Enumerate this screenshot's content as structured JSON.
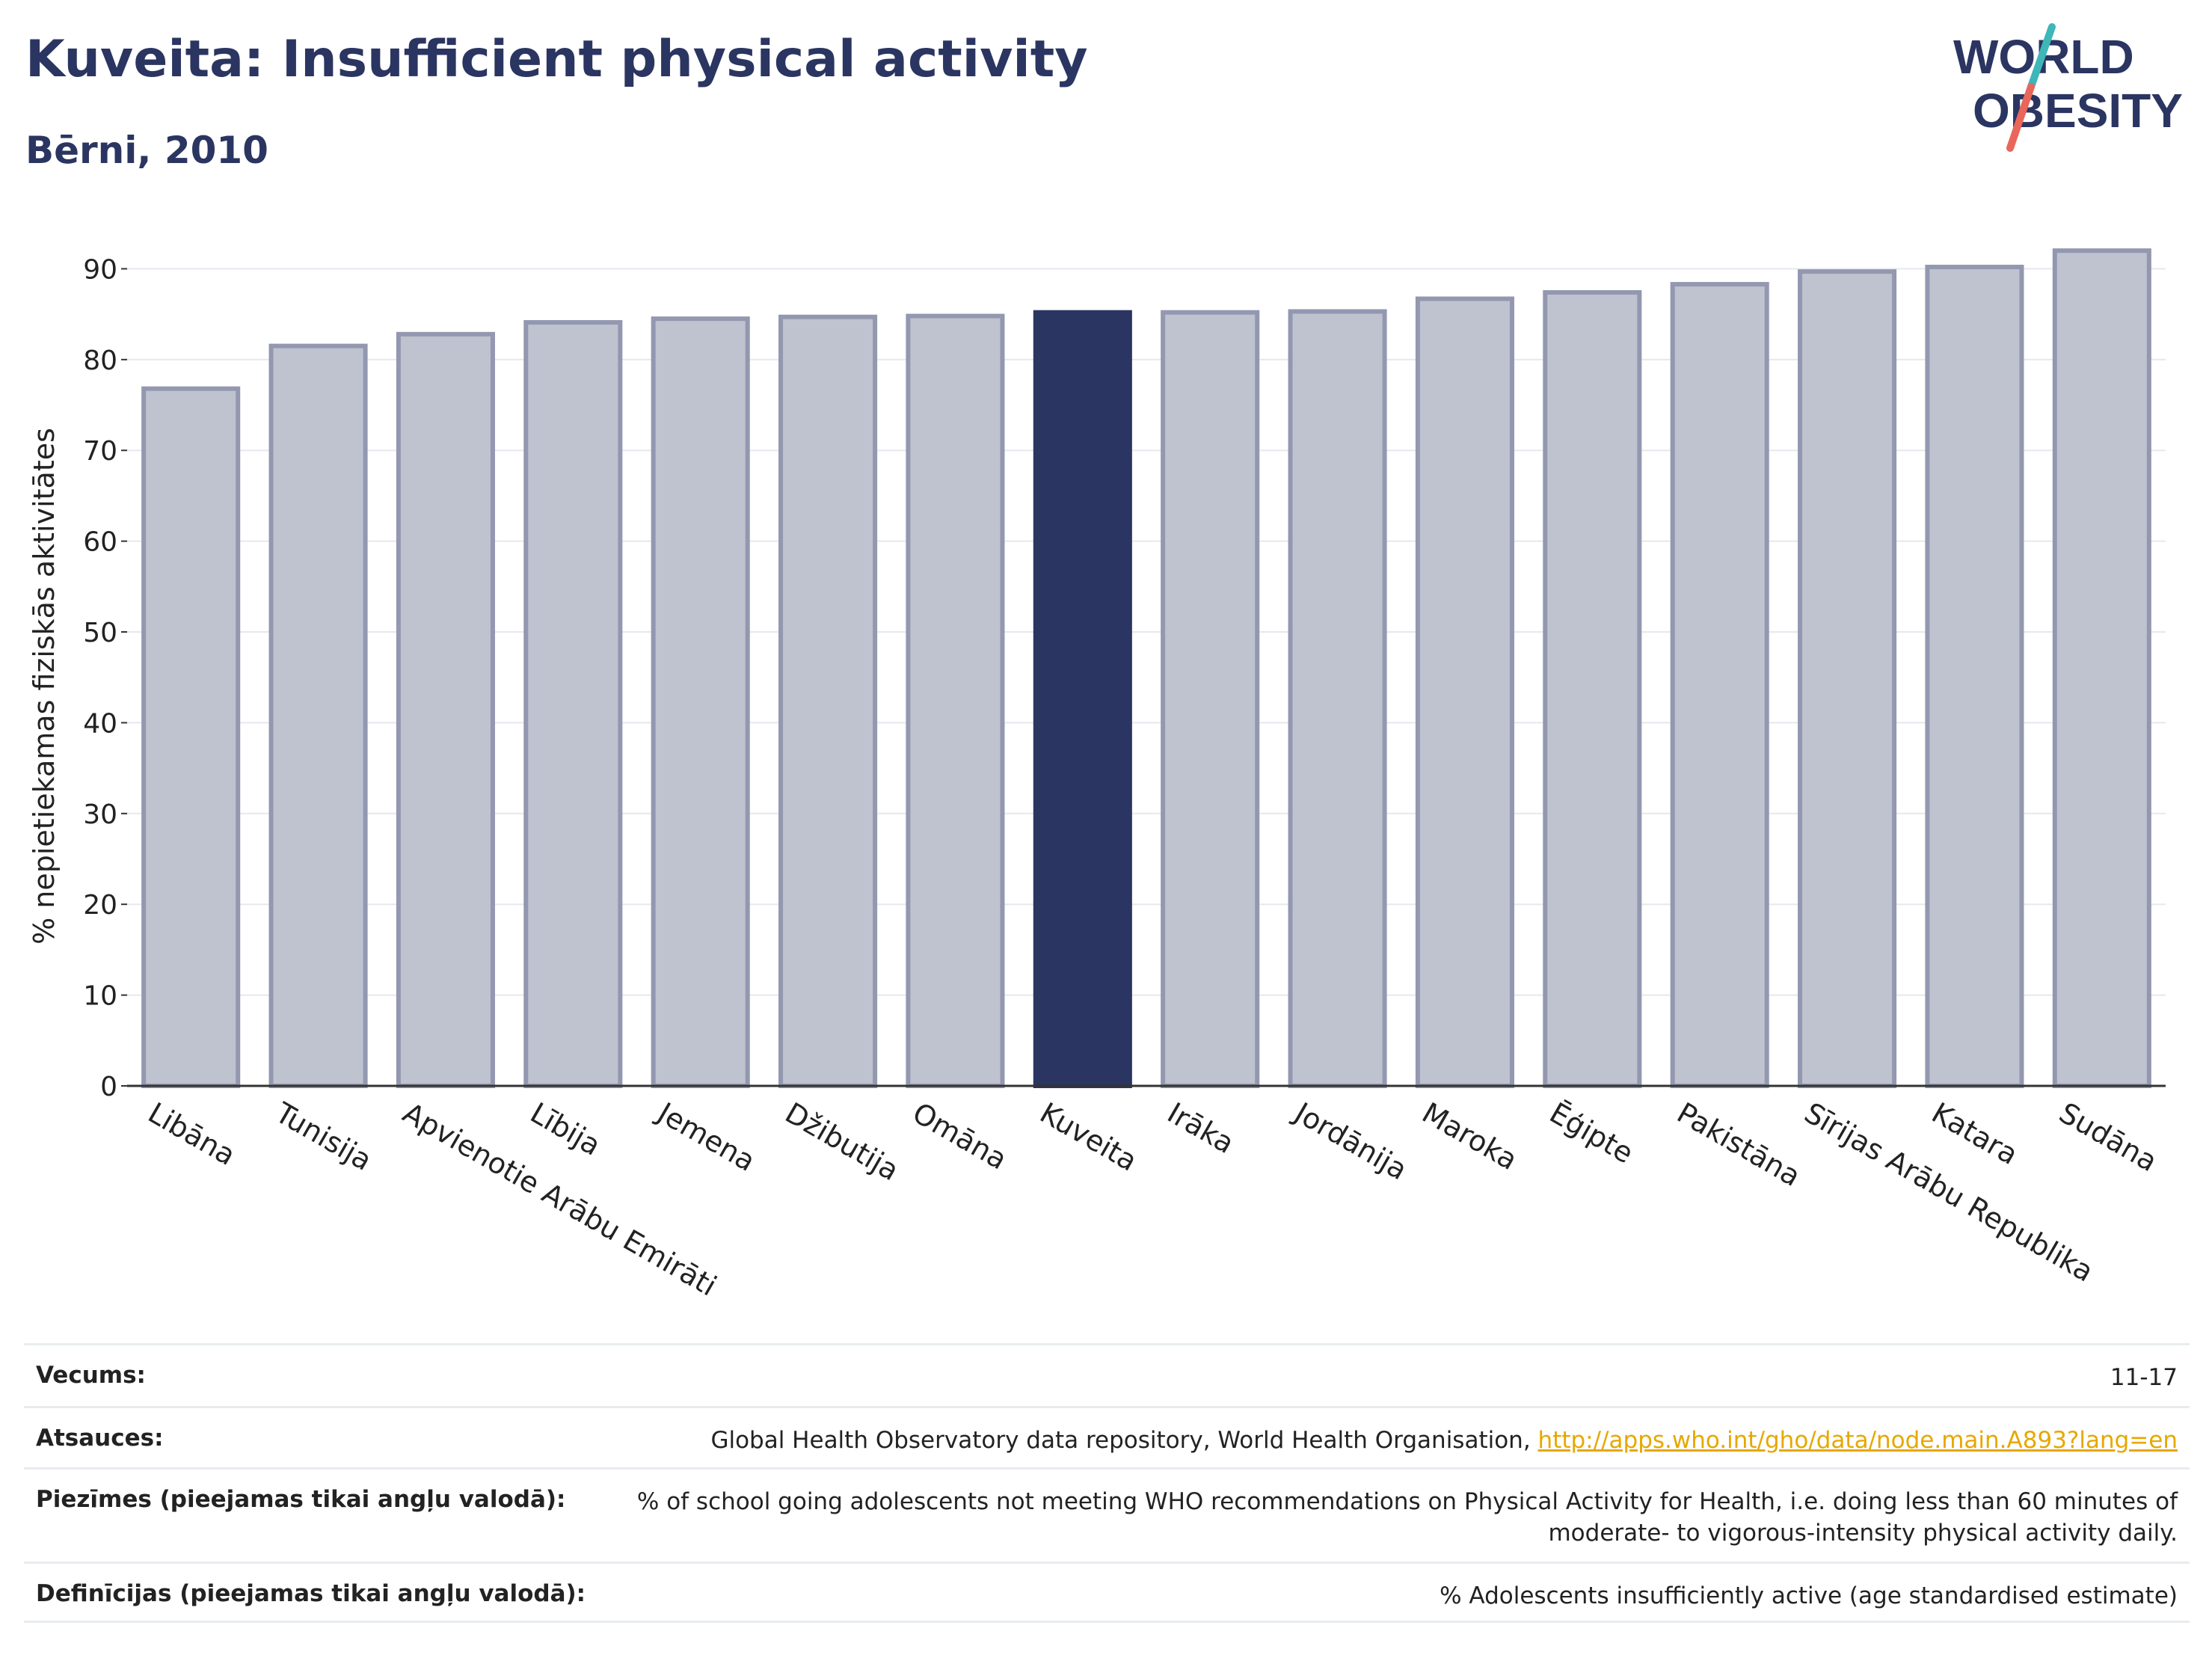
{
  "header": {
    "title": "Kuveita: Insufficient physical activity",
    "subtitle": "Bērni, 2010"
  },
  "logo": {
    "line1": "WORLD",
    "line2": "OBESITY",
    "colors": {
      "text": "#2b3561",
      "slash_teal": "#3fb6b8",
      "slash_coral": "#e8675a"
    }
  },
  "chart_data": {
    "type": "bar",
    "title": "Kuveita: Insufficient physical activity",
    "subtitle": "Bērni, 2010",
    "xlabel": "",
    "ylabel": "% nepietiekamas fiziskās aktivitātes",
    "ylim": [
      0,
      93
    ],
    "yticks": [
      0,
      10,
      20,
      30,
      40,
      50,
      60,
      70,
      80,
      90
    ],
    "grid": true,
    "highlight": "Kuveita",
    "colors": {
      "bar": "#bfc2cf",
      "bar_edge": "#9398b0",
      "highlight": "#2b3561",
      "grid": "#e6e8ee"
    },
    "categories": [
      "Libāna",
      "Tunisija",
      "Apvienotie Arābu Emirāti",
      "Lībija",
      "Jemena",
      "Džibutija",
      "Omāna",
      "Kuveita",
      "Irāka",
      "Jordānija",
      "Maroka",
      "Ēģipte",
      "Pakistāna",
      "Sīrijas Arābu Republika",
      "Katara",
      "Sudāna"
    ],
    "values": [
      76.8,
      81.5,
      82.8,
      84.1,
      84.5,
      84.7,
      84.8,
      85.2,
      85.2,
      85.3,
      86.7,
      87.4,
      88.3,
      89.7,
      90.2,
      92.0
    ]
  },
  "meta": {
    "age_label": "Vecums:",
    "age_value": "11-17",
    "sources_label": "Atsauces:",
    "sources_text": "Global Health Observatory data repository, World Health Organisation, ",
    "sources_link": "http://apps.who.int/gho/data/node.main.A893?lang=en",
    "notes_label": "Piezīmes (pieejamas tikai angļu valodā):",
    "notes_line1": "% of school going adolescents not meeting WHO recommendations on Physical Activity for Health, i.e. doing less than 60 minutes of",
    "notes_line2": "moderate- to vigorous-intensity physical activity daily.",
    "definitions_label": "Definīcijas (pieejamas tikai angļu valodā):",
    "definitions_value": "% Adolescents insufficiently active (age standardised estimate)"
  }
}
